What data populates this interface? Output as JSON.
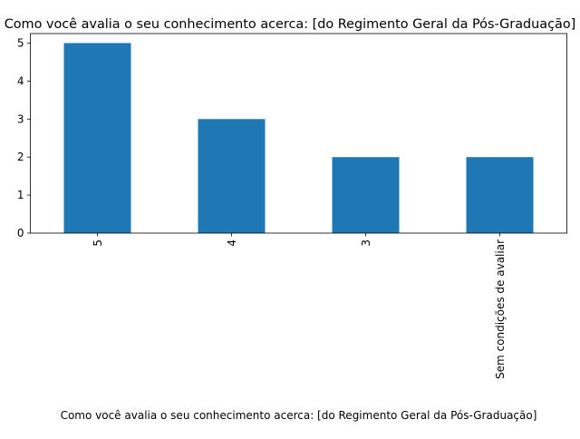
{
  "chart_data": {
    "type": "bar",
    "title": "Como você avalia o seu conhecimento acerca: [do Regimento Geral da Pós-Graduação]",
    "xlabel": "Como você avalia o seu conhecimento acerca: [do Regimento Geral da Pós-Graduação]",
    "ylabel": "",
    "categories": [
      "5",
      "4",
      "3",
      "Sem condições de avaliar"
    ],
    "values": [
      5,
      3,
      2,
      2
    ],
    "ylim": [
      0,
      5.25
    ],
    "yticks": [
      0,
      1,
      2,
      3,
      4,
      5
    ],
    "grid": false,
    "bar_color": "#1f77b4"
  }
}
